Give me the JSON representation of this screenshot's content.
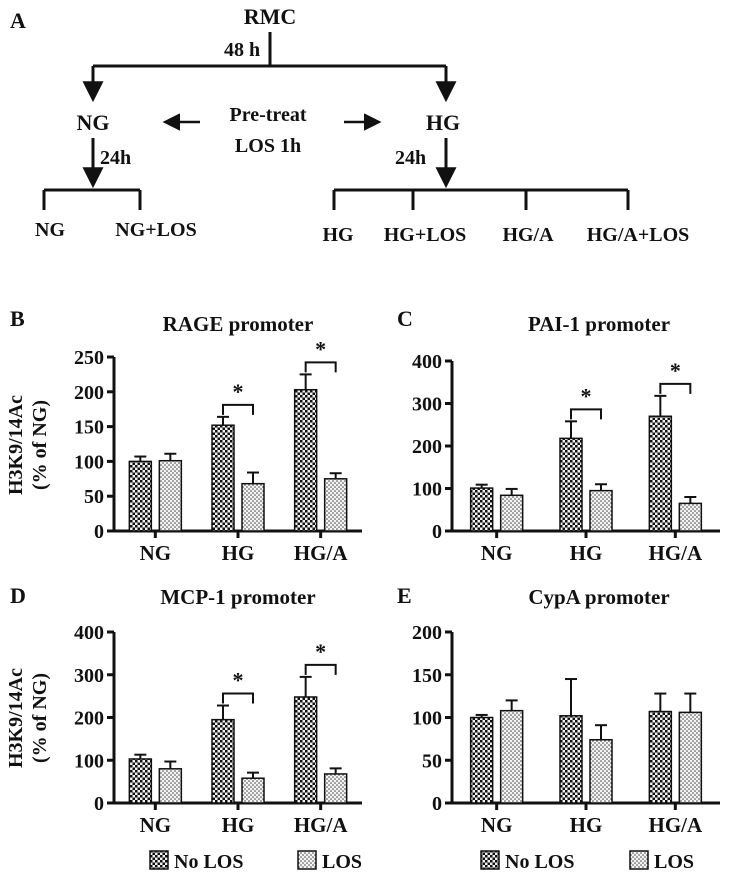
{
  "flow": {
    "panel_letter": "A",
    "root": "RMC",
    "root_time": "48 h",
    "left_node": "NG",
    "right_node": "HG",
    "pretreat_line1": "Pre-treat",
    "pretreat_line2": "LOS 1h",
    "left_time": "24h",
    "right_time": "24h",
    "left_leaves": [
      "NG",
      "NG+LOS"
    ],
    "right_leaves": [
      "HG",
      "HG+LOS",
      "HG/A",
      "HG/A+LOS"
    ]
  },
  "legend": {
    "no_los": "No LOS",
    "los": "LOS"
  },
  "colors": {
    "no_los_fill": "checkered dark",
    "los_fill": "dotted light",
    "ink": "#111111"
  },
  "chart_data": [
    {
      "panel": "B",
      "type": "bar",
      "title": "RAGE promoter",
      "ylabel_line1": "H3K9/14Ac",
      "ylabel_line2": "(% of NG)",
      "categories": [
        "NG",
        "HG",
        "HG/A"
      ],
      "series": [
        {
          "name": "No LOS",
          "values": [
            100,
            152,
            203
          ],
          "errors": [
            7,
            12,
            22
          ]
        },
        {
          "name": "LOS",
          "values": [
            101,
            68,
            75
          ],
          "errors": [
            10,
            16,
            8
          ]
        }
      ],
      "ylim": [
        0,
        250
      ],
      "yticks": [
        0,
        50,
        100,
        150,
        200,
        250
      ],
      "significance": [
        "",
        "*",
        "*"
      ]
    },
    {
      "panel": "C",
      "type": "bar",
      "title": "PAI-1 promoter",
      "ylabel_line1": "",
      "ylabel_line2": "",
      "categories": [
        "NG",
        "HG",
        "HG/A"
      ],
      "series": [
        {
          "name": "No LOS",
          "values": [
            101,
            218,
            270
          ],
          "errors": [
            8,
            40,
            48
          ]
        },
        {
          "name": "LOS",
          "values": [
            84,
            95,
            65
          ],
          "errors": [
            15,
            15,
            15
          ]
        }
      ],
      "ylim": [
        0,
        400
      ],
      "yticks": [
        0,
        100,
        200,
        300,
        400
      ],
      "significance": [
        "",
        "*",
        "*"
      ]
    },
    {
      "panel": "D",
      "type": "bar",
      "title": "MCP-1 promoter",
      "ylabel_line1": "H3K9/14Ac",
      "ylabel_line2": "(% of NG)",
      "categories": [
        "NG",
        "HG",
        "HG/A"
      ],
      "series": [
        {
          "name": "No LOS",
          "values": [
            103,
            195,
            248
          ],
          "errors": [
            10,
            33,
            47
          ]
        },
        {
          "name": "LOS",
          "values": [
            80,
            58,
            68
          ],
          "errors": [
            17,
            13,
            13
          ]
        }
      ],
      "ylim": [
        0,
        400
      ],
      "yticks": [
        0,
        100,
        200,
        300,
        400
      ],
      "significance": [
        "",
        "*",
        "*"
      ]
    },
    {
      "panel": "E",
      "type": "bar",
      "title": "CypA promoter",
      "ylabel_line1": "",
      "ylabel_line2": "",
      "categories": [
        "NG",
        "HG",
        "HG/A"
      ],
      "series": [
        {
          "name": "No LOS",
          "values": [
            100,
            102,
            107
          ],
          "errors": [
            3,
            43,
            21
          ]
        },
        {
          "name": "LOS",
          "values": [
            108,
            74,
            106
          ],
          "errors": [
            12,
            17,
            22
          ]
        }
      ],
      "ylim": [
        0,
        200
      ],
      "yticks": [
        0,
        50,
        100,
        150,
        200
      ],
      "significance": [
        "",
        "",
        ""
      ]
    }
  ]
}
